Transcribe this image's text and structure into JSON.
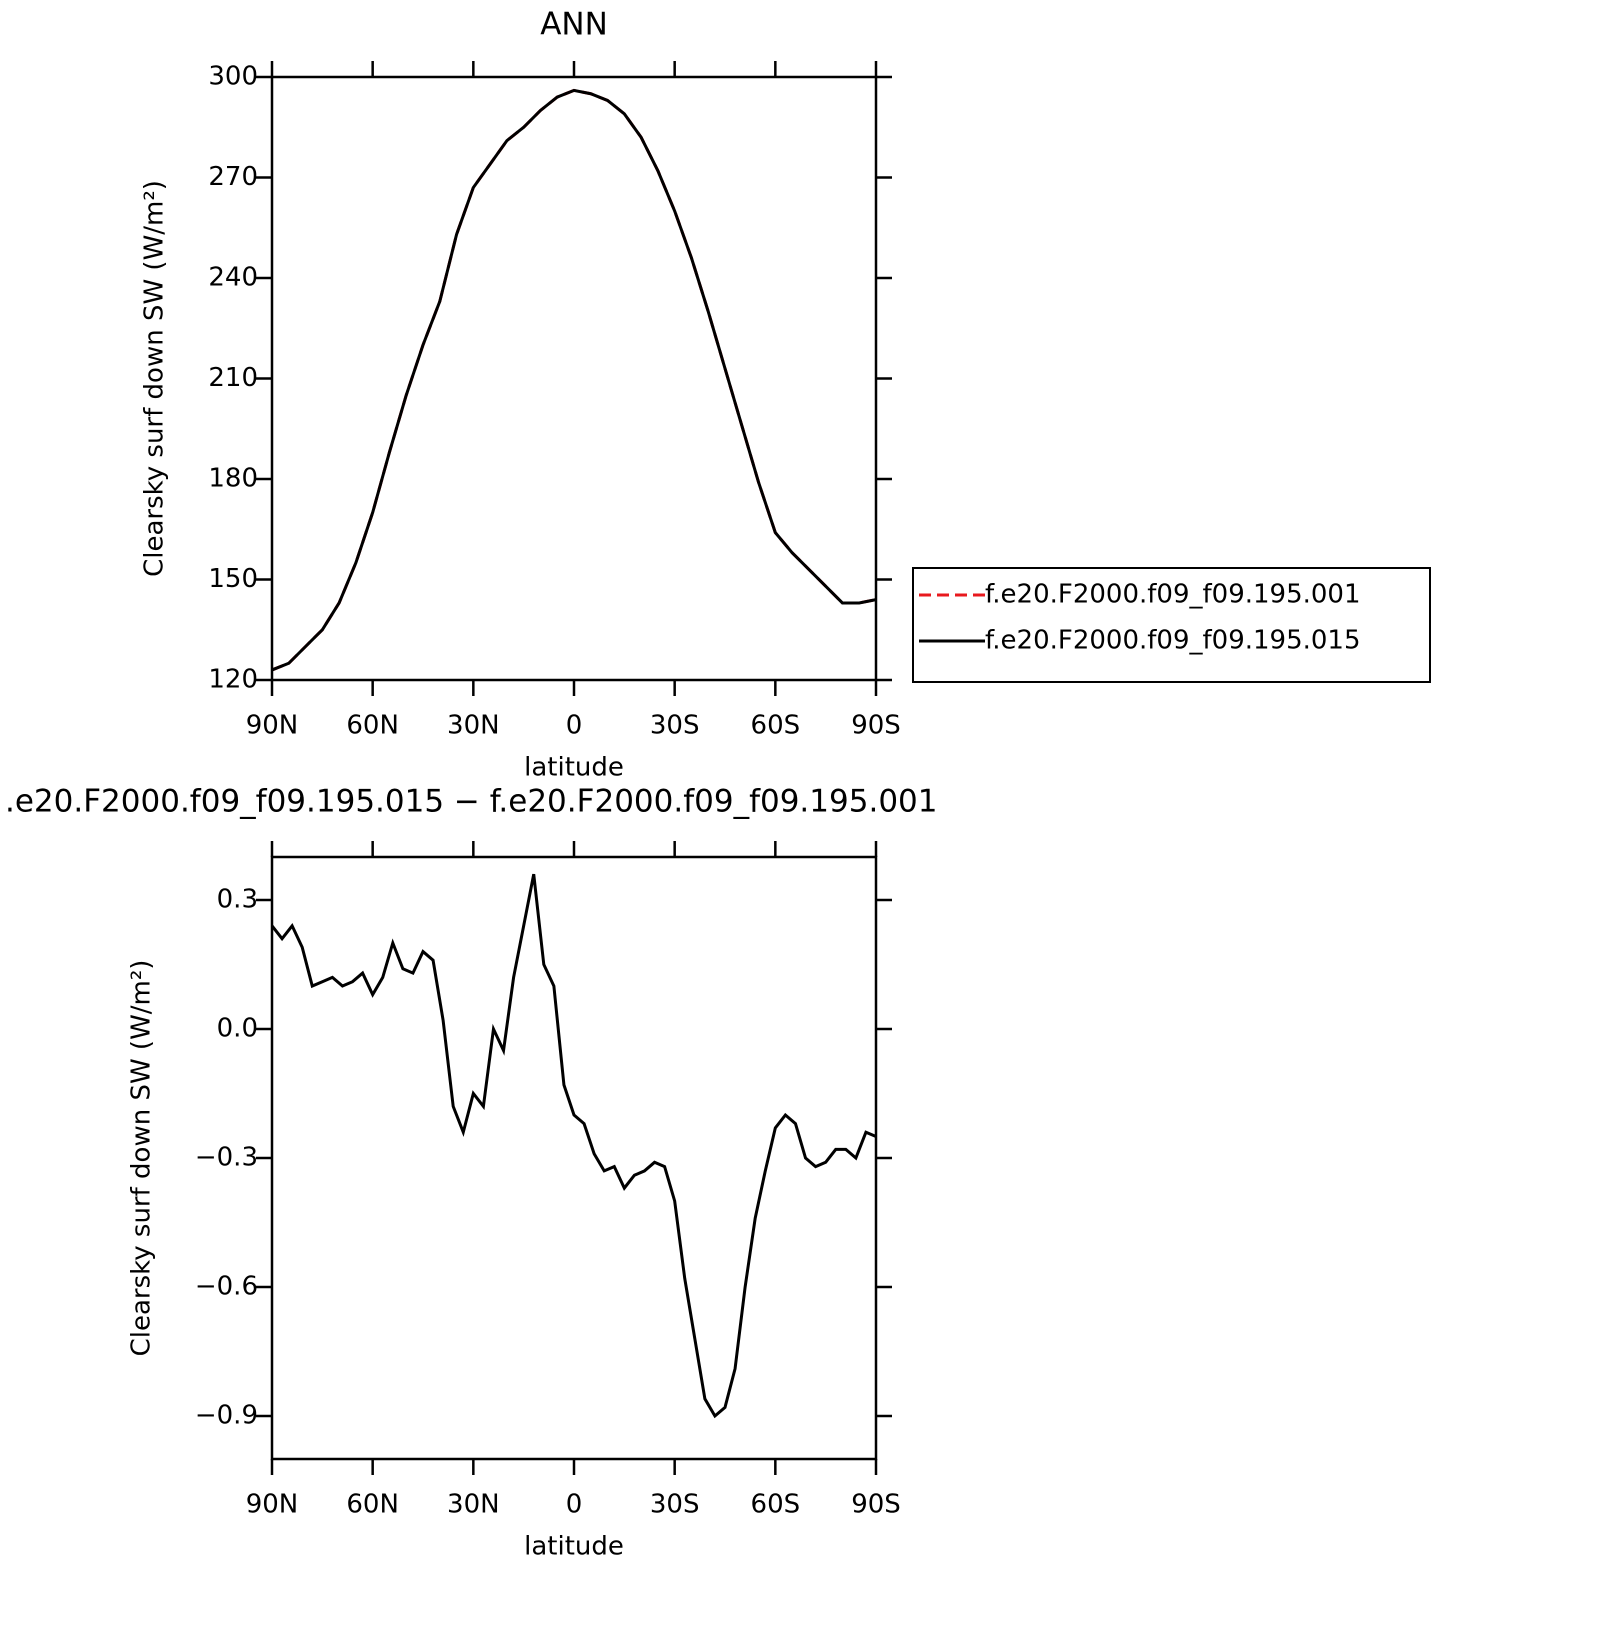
{
  "chart_data": [
    {
      "type": "line",
      "title": "ANN",
      "xlabel": "latitude",
      "ylabel": "Clearsky surf down SW (W/m²)",
      "x": [
        90,
        85,
        80,
        75,
        70,
        65,
        60,
        55,
        50,
        45,
        40,
        35,
        30,
        25,
        20,
        15,
        10,
        5,
        0,
        -5,
        -10,
        -15,
        -20,
        -25,
        -30,
        -35,
        -40,
        -45,
        -50,
        -55,
        -60,
        -65,
        -70,
        -75,
        -80,
        -85,
        -90
      ],
      "series": [
        {
          "name": "f.e20.F2000.f09_f09.195.001",
          "color": "#e8191e",
          "dash": true,
          "values": [
            123,
            125,
            130,
            135,
            143,
            155,
            170,
            188,
            205,
            220,
            233,
            253,
            267,
            274,
            281,
            285,
            290,
            294,
            296,
            295,
            293,
            289,
            282,
            272,
            260,
            246,
            230,
            213,
            196,
            179,
            164,
            158,
            153,
            148,
            143,
            143,
            144
          ]
        },
        {
          "name": "f.e20.F2000.f09_f09.195.015",
          "color": "#000000",
          "dash": false,
          "values": [
            123,
            125,
            130,
            135,
            143,
            155,
            170,
            188,
            205,
            220,
            233,
            253,
            267,
            274,
            281,
            285,
            290,
            294,
            296,
            295,
            293,
            289,
            282,
            272,
            260,
            246,
            230,
            213,
            196,
            179,
            164,
            158,
            153,
            148,
            143,
            143,
            144
          ]
        }
      ],
      "xlim": [
        90,
        -90
      ],
      "xticks": [
        {
          "value": 90,
          "label": "90N"
        },
        {
          "value": 60,
          "label": "60N"
        },
        {
          "value": 30,
          "label": "30N"
        },
        0,
        {
          "value": -30,
          "label": "30S"
        },
        {
          "value": -60,
          "label": "60S"
        },
        {
          "value": -90,
          "label": "90S"
        }
      ],
      "ylim": [
        120,
        300
      ],
      "yticks": [
        120,
        150,
        180,
        210,
        240,
        270,
        300
      ],
      "legend": "right"
    },
    {
      "type": "line",
      "title": ".e20.F2000.f09_f09.195.015 − f.e20.F2000.f09_f09.195.001",
      "xlabel": "latitude",
      "ylabel": "Clearsky surf down SW (W/m²)",
      "x": [
        90,
        87,
        84,
        81,
        78,
        75,
        72,
        69,
        66,
        63,
        60,
        57,
        54,
        51,
        48,
        45,
        42,
        39,
        36,
        33,
        30,
        27,
        24,
        21,
        18,
        15,
        12,
        9,
        6,
        3,
        0,
        -3,
        -6,
        -9,
        -12,
        -15,
        -18,
        -21,
        -24,
        -27,
        -30,
        -33,
        -36,
        -39,
        -42,
        -45,
        -48,
        -51,
        -54,
        -57,
        -60,
        -63,
        -66,
        -69,
        -72,
        -75,
        -78,
        -81,
        -84,
        -87,
        -90
      ],
      "series": [
        {
          "color": "#000000",
          "dash": false,
          "values": [
            0.24,
            0.21,
            0.24,
            0.19,
            0.1,
            0.11,
            0.12,
            0.1,
            0.11,
            0.13,
            0.08,
            0.12,
            0.2,
            0.14,
            0.13,
            0.18,
            0.16,
            0.02,
            -0.18,
            -0.24,
            -0.15,
            -0.18,
            0.0,
            -0.05,
            0.12,
            0.24,
            0.36,
            0.15,
            0.1,
            -0.13,
            -0.2,
            -0.22,
            -0.29,
            -0.33,
            -0.32,
            -0.37,
            -0.34,
            -0.33,
            -0.31,
            -0.32,
            -0.4,
            -0.58,
            -0.72,
            -0.86,
            -0.9,
            -0.88,
            -0.79,
            -0.6,
            -0.44,
            -0.33,
            -0.23,
            -0.2,
            -0.22,
            -0.3,
            -0.32,
            -0.31,
            -0.28,
            -0.28,
            -0.3,
            -0.24,
            -0.25
          ]
        }
      ],
      "xlim": [
        90,
        -90
      ],
      "xticks": [
        {
          "value": 90,
          "label": "90N"
        },
        {
          "value": 60,
          "label": "60N"
        },
        {
          "value": 30,
          "label": "30N"
        },
        0,
        {
          "value": -30,
          "label": "30S"
        },
        {
          "value": -60,
          "label": "60S"
        },
        {
          "value": -90,
          "label": "90S"
        }
      ],
      "ylim": [
        -1.0,
        0.4
      ],
      "yticks": [
        {
          "value": -0.9,
          "label": "−0.9"
        },
        {
          "value": -0.6,
          "label": "−0.6"
        },
        {
          "value": -0.3,
          "label": "−0.3"
        },
        {
          "value": 0,
          "label": "0.0"
        },
        {
          "value": 0.3,
          "label": "0.3"
        }
      ]
    }
  ]
}
